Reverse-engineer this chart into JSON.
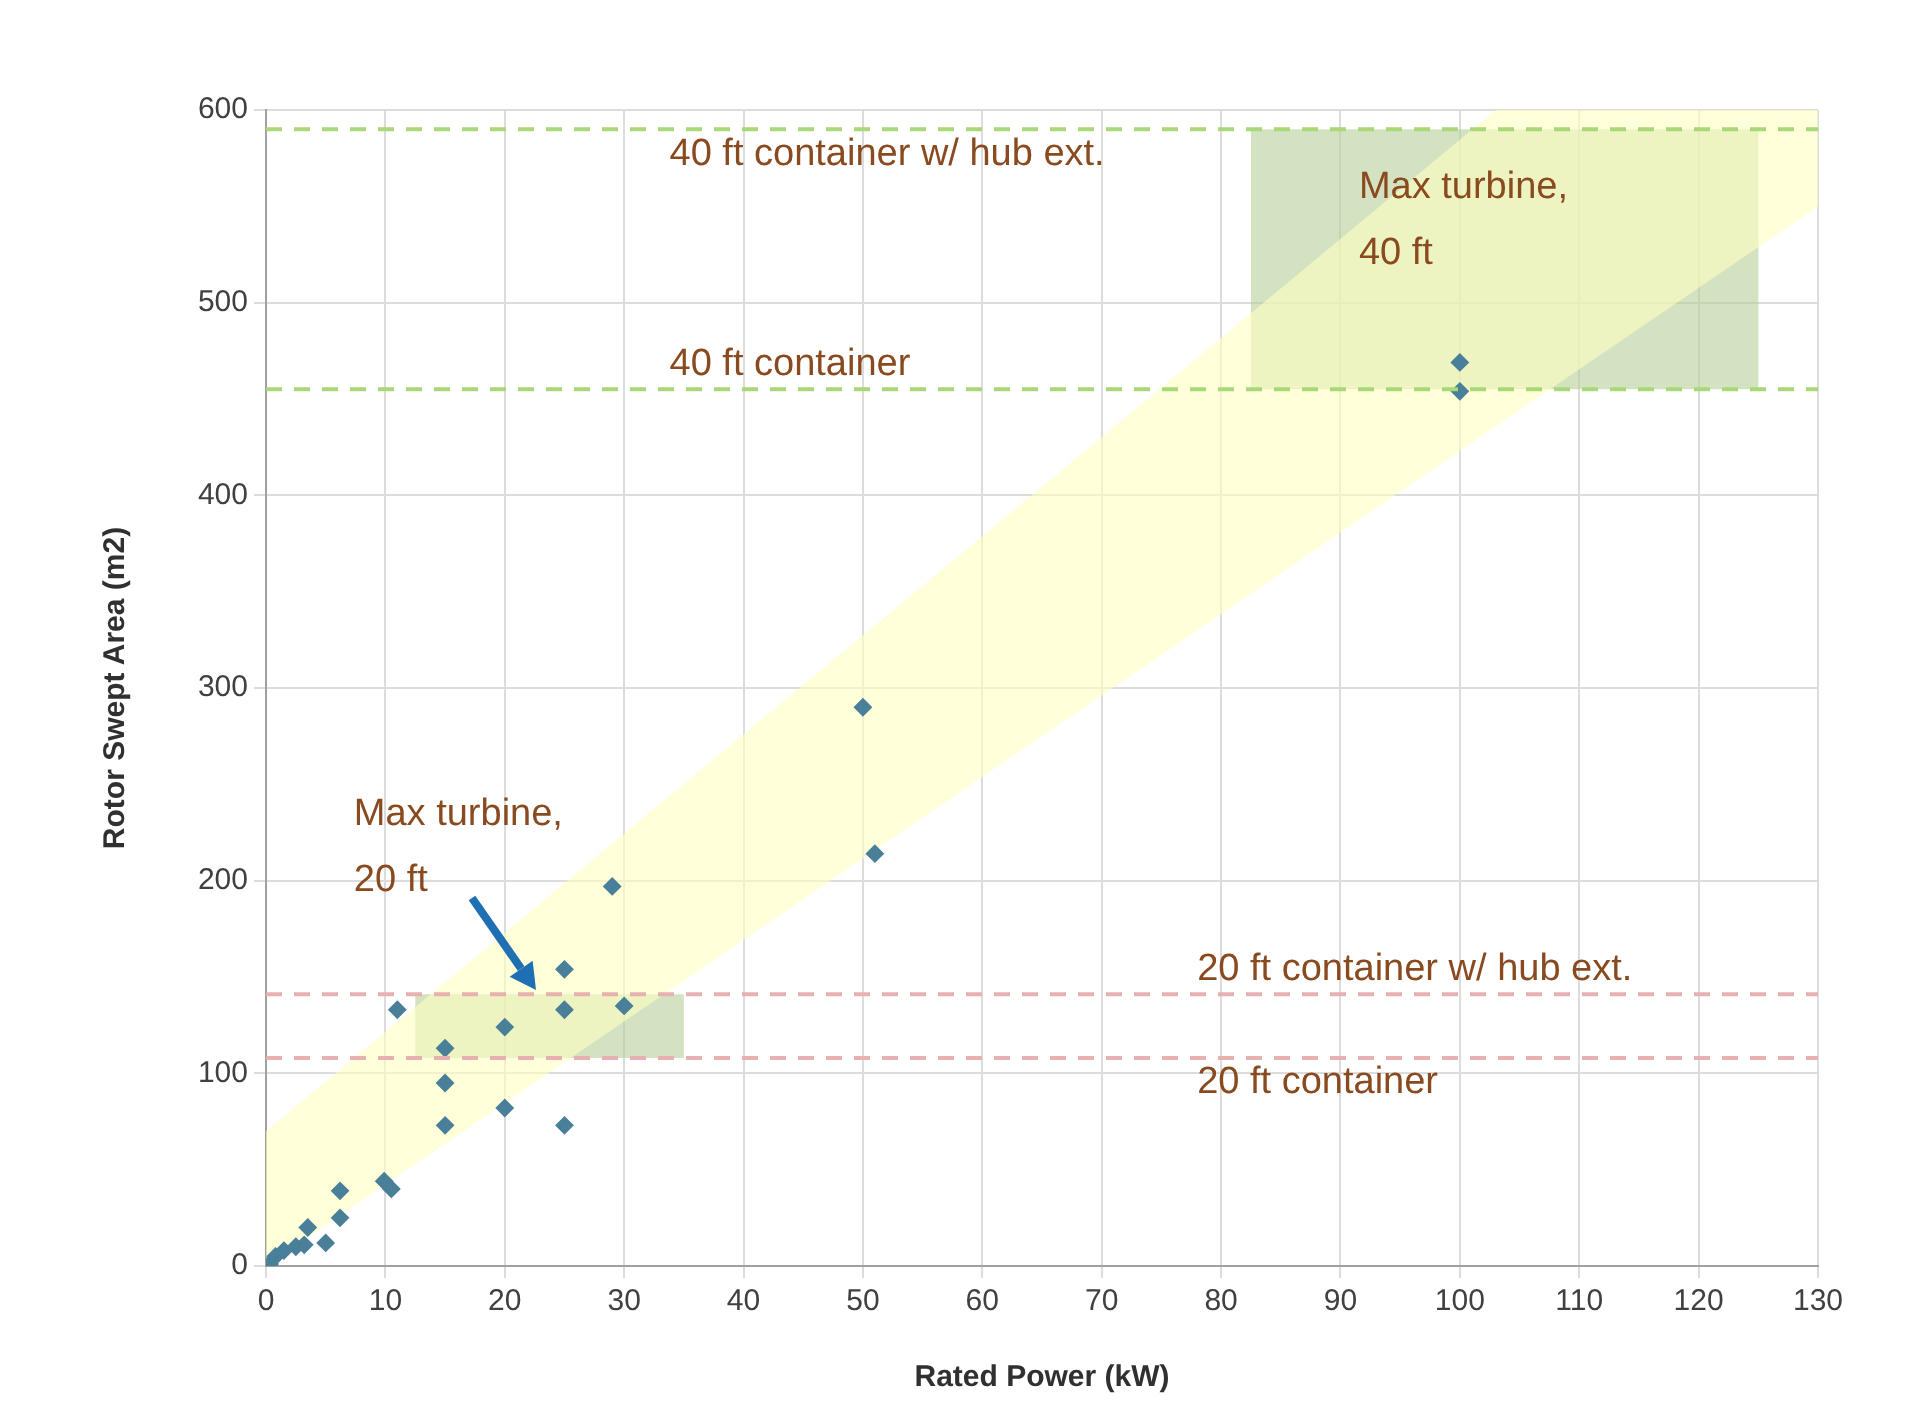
{
  "chart_data": {
    "type": "scatter",
    "xlabel": "Rated Power (kW)",
    "ylabel": "Rotor Swept Area (m2)",
    "xlim": [
      0,
      130
    ],
    "xticks": [
      0,
      10,
      20,
      30,
      40,
      50,
      60,
      70,
      80,
      90,
      100,
      110,
      120,
      130
    ],
    "ylim": [
      0,
      600
    ],
    "yticks": [
      0,
      100,
      200,
      300,
      400,
      500,
      600
    ],
    "grid": true,
    "legend": false,
    "marker": "diamond",
    "series": [
      {
        "type": "area",
        "marker": "none",
        "color": "#ffffc0",
        "x": [
          0,
          103,
          130,
          130,
          0
        ],
        "values": [
          70,
          600,
          600,
          550,
          0
        ]
      },
      {
        "type": "area",
        "marker": "none",
        "color": "#b5d19a",
        "x": [
          12.5,
          35,
          35,
          12.5
        ],
        "values": [
          141,
          141,
          108,
          108
        ]
      },
      {
        "type": "area",
        "marker": "none",
        "color": "#b5d19a",
        "x": [
          82.5,
          125,
          125,
          82.5
        ],
        "values": [
          590,
          590,
          455,
          455
        ]
      },
      {
        "color": "#4a7f99",
        "x": [
          0.3,
          0.8,
          1.5,
          2.5,
          3.2,
          3.5,
          5,
          6.2,
          6.2,
          9.9,
          10.5,
          11,
          15,
          15,
          15,
          20,
          20,
          25,
          25,
          25,
          29,
          30,
          50,
          51,
          100,
          100
        ],
        "values": [
          1,
          5,
          8,
          10,
          11,
          20,
          12,
          25,
          39,
          44,
          40,
          133,
          113,
          95,
          73,
          124,
          82,
          154,
          133,
          73,
          197,
          135,
          290,
          214,
          469,
          454
        ]
      }
    ],
    "ref_lines": [
      {
        "axis": "y",
        "value": 590,
        "color": "#a8d878",
        "line_style": "dashed",
        "label": "40 ft container w/ hub ext."
      },
      {
        "axis": "y",
        "value": 455,
        "color": "#a8d878",
        "line_style": "dashed",
        "label": "40 ft container"
      },
      {
        "axis": "y",
        "value": 141,
        "color": "#e8b0b0",
        "line_style": "dashed",
        "label": "20 ft container w/ hub ext."
      },
      {
        "axis": "y",
        "value": 108,
        "color": "#e8b0b0",
        "line_style": "dashed",
        "label": "20 ft container"
      }
    ],
    "annotations": [
      {
        "text": "Max turbine,\n40 ft",
        "x": 82.5,
        "y": 590
      },
      {
        "text": "Max turbine,\n20 ft",
        "x": 22.6,
        "y": 143
      }
    ]
  }
}
